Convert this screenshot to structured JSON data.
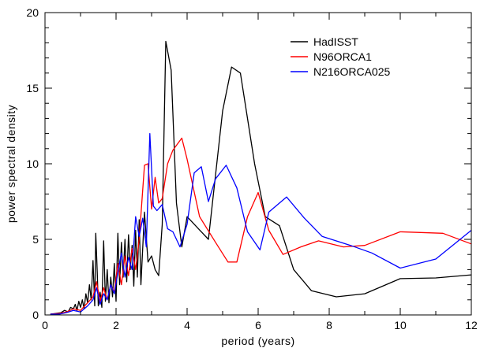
{
  "chart_data": {
    "type": "line",
    "title": "",
    "xlabel": "period (years)",
    "ylabel": "power spectral density",
    "xlim": [
      0,
      12
    ],
    "ylim": [
      0,
      20
    ],
    "xticks": [
      0,
      2,
      4,
      6,
      8,
      10,
      12
    ],
    "yticks": [
      0,
      5,
      10,
      15,
      20
    ],
    "grid": false,
    "legend_position": "top-right",
    "series": [
      {
        "name": "HadISST",
        "color": "#000000",
        "x": [
          0.15,
          0.3,
          0.45,
          0.55,
          0.65,
          0.72,
          0.8,
          0.85,
          0.9,
          0.95,
          1.0,
          1.05,
          1.1,
          1.15,
          1.2,
          1.25,
          1.3,
          1.35,
          1.4,
          1.43,
          1.47,
          1.5,
          1.55,
          1.6,
          1.65,
          1.7,
          1.75,
          1.8,
          1.85,
          1.9,
          1.95,
          2.0,
          2.05,
          2.1,
          2.15,
          2.2,
          2.25,
          2.3,
          2.35,
          2.4,
          2.45,
          2.5,
          2.55,
          2.6,
          2.65,
          2.7,
          2.8,
          2.9,
          3.0,
          3.1,
          3.2,
          3.3,
          3.4,
          3.55,
          3.7,
          3.85,
          4.0,
          4.2,
          4.6,
          5.0,
          5.25,
          5.5,
          5.9,
          6.2,
          6.6,
          7.0,
          7.5,
          8.2,
          9.0,
          10.0,
          11.0,
          12.0
        ],
        "y": [
          0.05,
          0.1,
          0.15,
          0.3,
          0.2,
          0.5,
          0.4,
          0.7,
          0.3,
          0.9,
          0.5,
          1.0,
          0.4,
          1.4,
          0.8,
          2.0,
          1.0,
          3.6,
          0.6,
          5.4,
          2.8,
          0.6,
          1.5,
          0.5,
          4.9,
          0.9,
          3.0,
          0.8,
          2.5,
          1.2,
          3.4,
          0.9,
          5.4,
          2.0,
          4.8,
          2.5,
          5.0,
          2.2,
          5.3,
          3.0,
          4.6,
          1.9,
          5.6,
          2.5,
          6.3,
          2.0,
          6.8,
          3.5,
          3.9,
          3.0,
          2.6,
          6.0,
          18.1,
          16.2,
          7.4,
          4.5,
          6.5,
          6.0,
          5.0,
          13.5,
          16.4,
          16.0,
          10.0,
          6.5,
          5.9,
          3.0,
          1.6,
          1.2,
          1.4,
          2.4,
          2.45,
          2.65
        ]
      },
      {
        "name": "N96ORCA1",
        "color": "#ff0000",
        "x": [
          0.15,
          0.4,
          0.6,
          0.8,
          1.0,
          1.2,
          1.35,
          1.45,
          1.55,
          1.65,
          1.75,
          1.85,
          1.95,
          2.05,
          2.15,
          2.25,
          2.35,
          2.45,
          2.55,
          2.65,
          2.8,
          2.9,
          3.0,
          3.1,
          3.2,
          3.3,
          3.45,
          3.6,
          3.85,
          4.0,
          4.35,
          4.8,
          5.15,
          5.4,
          5.7,
          6.0,
          6.3,
          6.7,
          7.2,
          7.7,
          8.4,
          9.0,
          10.0,
          11.2,
          12.0
        ],
        "y": [
          0.05,
          0.1,
          0.2,
          0.4,
          0.3,
          0.8,
          1.2,
          2.2,
          0.9,
          1.8,
          1.0,
          2.0,
          1.5,
          3.4,
          2.0,
          3.9,
          2.6,
          4.4,
          3.0,
          5.0,
          9.9,
          10.0,
          7.0,
          9.1,
          7.4,
          7.7,
          10.0,
          10.9,
          11.7,
          10.3,
          6.5,
          4.8,
          3.5,
          3.5,
          6.5,
          8.1,
          5.6,
          4.0,
          4.5,
          4.9,
          4.5,
          4.6,
          5.5,
          5.4,
          4.7
        ]
      },
      {
        "name": "N216ORCA025",
        "color": "#0000ff",
        "x": [
          0.15,
          0.4,
          0.6,
          0.8,
          1.0,
          1.2,
          1.35,
          1.45,
          1.55,
          1.65,
          1.75,
          1.85,
          1.95,
          2.05,
          2.15,
          2.25,
          2.35,
          2.45,
          2.55,
          2.65,
          2.75,
          2.85,
          2.95,
          3.05,
          3.15,
          3.3,
          3.45,
          3.6,
          3.8,
          4.0,
          4.2,
          4.4,
          4.6,
          4.8,
          5.1,
          5.4,
          5.7,
          6.05,
          6.3,
          6.8,
          7.3,
          7.8,
          8.6,
          9.2,
          10.0,
          11.0,
          12.0
        ],
        "y": [
          0.05,
          0.05,
          0.15,
          0.3,
          0.2,
          0.6,
          1.0,
          1.8,
          0.7,
          1.4,
          1.0,
          2.0,
          1.4,
          2.8,
          4.1,
          2.5,
          3.8,
          3.0,
          6.5,
          5.2,
          6.4,
          4.5,
          12.0,
          7.2,
          6.9,
          7.3,
          5.7,
          5.5,
          4.5,
          6.0,
          9.4,
          9.8,
          7.5,
          9.0,
          9.9,
          8.4,
          5.5,
          4.3,
          6.8,
          7.8,
          6.4,
          5.2,
          4.6,
          4.1,
          3.1,
          3.7,
          5.6
        ]
      }
    ]
  }
}
